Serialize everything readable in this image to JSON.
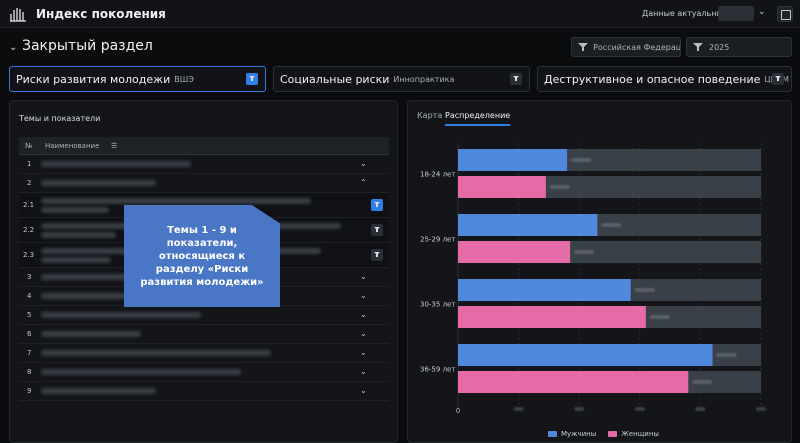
{
  "header": {
    "app_title": "Индекс поколения",
    "actual_label": "Данные актуальны на"
  },
  "section": {
    "title": "Закрытый раздел",
    "filters": [
      {
        "label": "Российская Федерац..."
      },
      {
        "label": "2025"
      }
    ]
  },
  "categories": [
    {
      "title": "Риски развития молодежи",
      "source": "ВШЭ"
    },
    {
      "title": "Социальные риски",
      "source": "Иннопрактика"
    },
    {
      "title": "Деструктивное и опасное поведение",
      "source": "ЦИСМ"
    }
  ],
  "topics": {
    "title": "Темы и показатели",
    "col_num": "№",
    "col_name": "Наименование",
    "sort_glyph": "☰",
    "rows": [
      {
        "n": "1",
        "expanded": false
      },
      {
        "n": "2",
        "expanded": true
      },
      {
        "n": "2.1",
        "sub": true,
        "filter_active": true
      },
      {
        "n": "2.2",
        "sub": true,
        "filter_active": false
      },
      {
        "n": "2.3",
        "sub": true,
        "filter_active": false
      },
      {
        "n": "3",
        "expanded": false
      },
      {
        "n": "4",
        "expanded": false
      },
      {
        "n": "5",
        "expanded": false
      },
      {
        "n": "6",
        "expanded": false
      },
      {
        "n": "7",
        "expanded": false
      },
      {
        "n": "8",
        "expanded": false
      },
      {
        "n": "9",
        "expanded": false
      }
    ],
    "callout": "Темы 1 - 9 и показатели, относящиеся к разделу «Риски развития молодежи»"
  },
  "chart_tabs": {
    "map": "Карта",
    "distribution": "Распределение"
  },
  "chart_data": {
    "type": "bar",
    "orientation": "horizontal",
    "categories": [
      "18-24 лет",
      "25-29 лет",
      "30-35 лет",
      "36-59 лет"
    ],
    "series": [
      {
        "name": "Мужчины",
        "color": "#4f88dc",
        "values": [
          36,
          46,
          57,
          84
        ]
      },
      {
        "name": "Женщины",
        "color": "#e46aa8",
        "values": [
          29,
          37,
          62,
          76
        ]
      }
    ],
    "xlim": [
      0,
      100
    ],
    "x_ticks": [
      "0"
    ],
    "legend": "bottom",
    "track_color": "#3a4048"
  }
}
